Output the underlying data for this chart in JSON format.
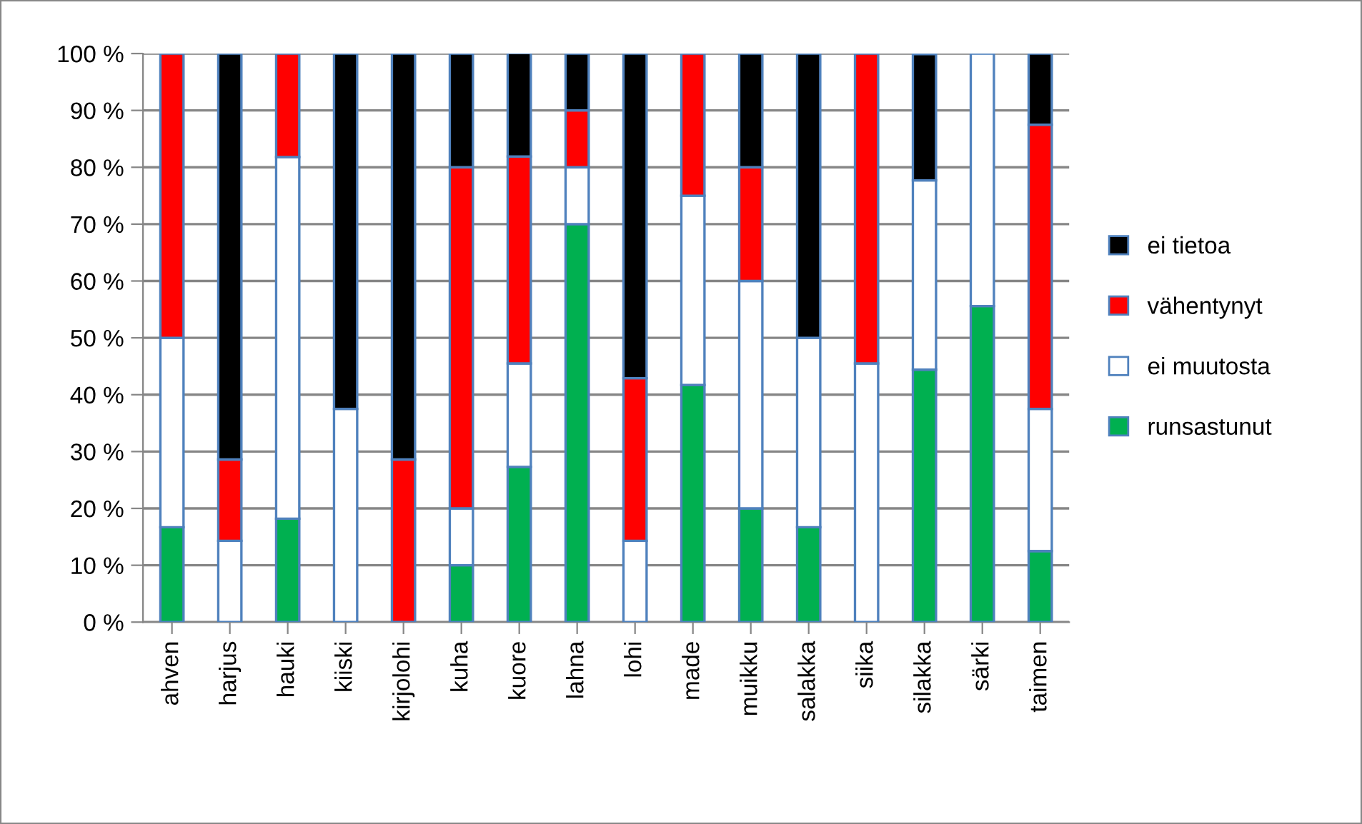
{
  "chart_data": {
    "type": "bar",
    "stacked": true,
    "grid": "y",
    "legend": "right",
    "categories": [
      "ahven",
      "harjus",
      "hauki",
      "kiiski",
      "kirjolohi",
      "kuha",
      "kuore",
      "lahna",
      "lohi",
      "made",
      "muikku",
      "salakka",
      "siika",
      "silakka",
      "särki",
      "taimen"
    ],
    "series": [
      {
        "name": "runsastunut",
        "color": "#00b050",
        "values": [
          16.7,
          0,
          18.2,
          0,
          0,
          10,
          27.3,
          70,
          0,
          41.7,
          20,
          16.7,
          0,
          44.4,
          55.6,
          12.5
        ]
      },
      {
        "name": "ei muutosta",
        "color": "#ffffff",
        "values": [
          33.3,
          14.3,
          63.6,
          37.5,
          0,
          10,
          18.2,
          10,
          14.3,
          33.3,
          40,
          33.3,
          45.5,
          33.3,
          44.4,
          25
        ]
      },
      {
        "name": "vähentynyt",
        "color": "#ff0000",
        "values": [
          50,
          14.3,
          18.2,
          0,
          28.6,
          60,
          36.4,
          10,
          28.6,
          25,
          20,
          0,
          54.5,
          0,
          0,
          50
        ]
      },
      {
        "name": "ei tietoa",
        "color": "#000000",
        "values": [
          0,
          71.4,
          0,
          62.5,
          71.4,
          20,
          18.2,
          10,
          57.1,
          0,
          20,
          50,
          0,
          22.2,
          0,
          12.5
        ]
      }
    ],
    "ylim": [
      0,
      100
    ],
    "yticks": [
      {
        "value": 0,
        "label": "0 %"
      },
      {
        "value": 10,
        "label": "10 %"
      },
      {
        "value": 20,
        "label": "20 %"
      },
      {
        "value": 30,
        "label": "30 %"
      },
      {
        "value": 40,
        "label": "40 %"
      },
      {
        "value": 50,
        "label": "50 %"
      },
      {
        "value": 60,
        "label": "60 %"
      },
      {
        "value": 70,
        "label": "70 %"
      },
      {
        "value": 80,
        "label": "80 %"
      },
      {
        "value": 90,
        "label": "90 %"
      },
      {
        "value": 100,
        "label": "100 %"
      }
    ]
  }
}
